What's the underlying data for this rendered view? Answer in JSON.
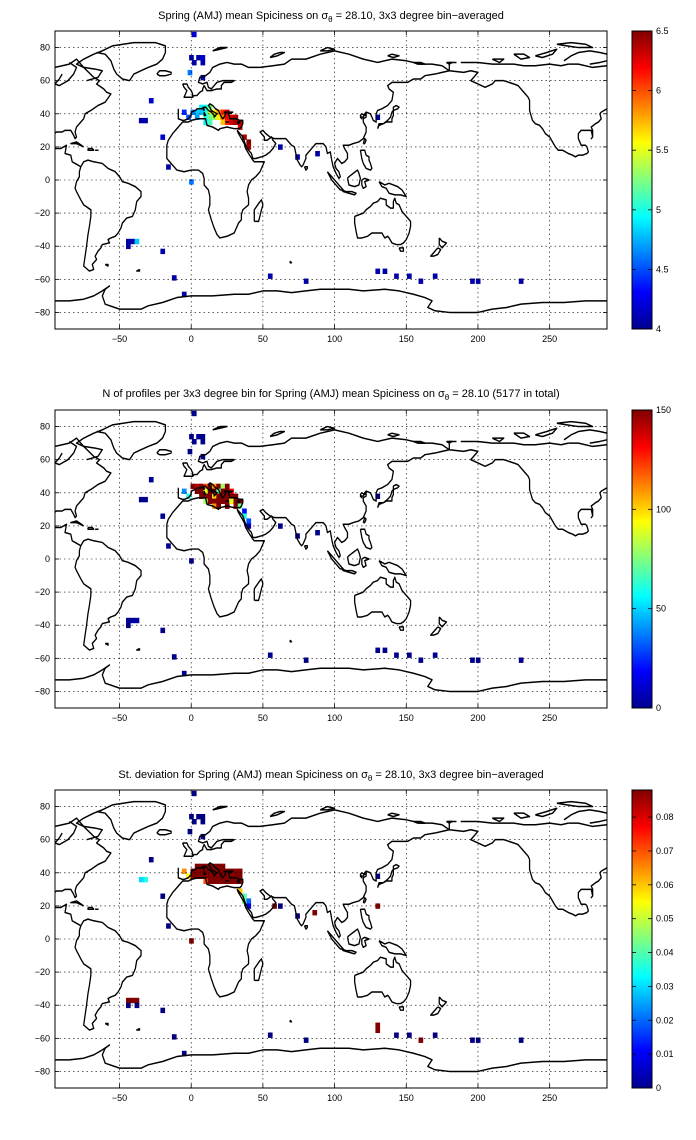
{
  "figure": {
    "colormap": "jet",
    "colors": {
      "ocean": "#ffffff",
      "coastline": "#000000",
      "grid": "#000000",
      "saturated_high": "#800000",
      "low_end": "#00008f"
    }
  },
  "chart_data": [
    {
      "type": "heatmap",
      "title_prefix": "Spring (AMJ) mean Spiciness on σ",
      "title_sub": "θ",
      "title_suffix": " = 28.10, 3x3 degree bin−averaged",
      "xlim": [
        -95,
        290
      ],
      "ylim": [
        -90,
        90
      ],
      "xticks": [
        -50,
        0,
        50,
        100,
        150,
        200,
        250
      ],
      "yticks": [
        -80,
        -60,
        -40,
        -20,
        0,
        20,
        40,
        60,
        80
      ],
      "clim": [
        4,
        6.5
      ],
      "cticks": [
        "4",
        "4.5",
        "5",
        "5.5",
        "6",
        "6.5"
      ],
      "grid": true,
      "colorbar": "right",
      "cells": [
        [
          2,
          88,
          4.2
        ],
        [
          0,
          74,
          4.1
        ],
        [
          5,
          74,
          4.1
        ],
        [
          8,
          74,
          4.2
        ],
        [
          2,
          71,
          4.1
        ],
        [
          8,
          71,
          4.1
        ],
        [
          -1,
          65,
          4.6
        ],
        [
          8,
          62,
          4.1
        ],
        [
          -28,
          48,
          4.2
        ],
        [
          -32,
          36,
          4.1
        ],
        [
          -35,
          36,
          4.1
        ],
        [
          -5,
          41,
          4.4
        ],
        [
          -2,
          38,
          4.5
        ],
        [
          1,
          41,
          4.6
        ],
        [
          4,
          41,
          4.8
        ],
        [
          4,
          38,
          4.7
        ],
        [
          7,
          44,
          4.9
        ],
        [
          10,
          44,
          5.0
        ],
        [
          13,
          44,
          5.2
        ],
        [
          7,
          41,
          4.8
        ],
        [
          10,
          41,
          5.0
        ],
        [
          10,
          38,
          5.0
        ],
        [
          10,
          35,
          4.9
        ],
        [
          13,
          41,
          5.4
        ],
        [
          13,
          38,
          5.2
        ],
        [
          13,
          35,
          5.1
        ],
        [
          16,
          41,
          5.6
        ],
        [
          16,
          38,
          5.3
        ],
        [
          19,
          41,
          5.8
        ],
        [
          19,
          38,
          5.6
        ],
        [
          22,
          41,
          6.1
        ],
        [
          22,
          38,
          5.9
        ],
        [
          22,
          35,
          5.7
        ],
        [
          25,
          41,
          6.3
        ],
        [
          25,
          38,
          6.2
        ],
        [
          25,
          35,
          6.1
        ],
        [
          28,
          38,
          6.3
        ],
        [
          28,
          35,
          6.3
        ],
        [
          31,
          38,
          6.4
        ],
        [
          31,
          35,
          6.4
        ],
        [
          34,
          35,
          6.4
        ],
        [
          34,
          32,
          6.3
        ],
        [
          37,
          26,
          6.4
        ],
        [
          40,
          23,
          6.5
        ],
        [
          40,
          20,
          6.4
        ],
        [
          -20,
          26,
          4.2
        ],
        [
          -16,
          8,
          4.1
        ],
        [
          0,
          -1,
          4.6
        ],
        [
          -44,
          -37,
          4.1
        ],
        [
          -41,
          -37,
          4.1
        ],
        [
          -38,
          -37,
          4.8
        ],
        [
          -44,
          -40,
          4.1
        ],
        [
          -20,
          -43,
          4.1
        ],
        [
          -12,
          -59,
          4.1
        ],
        [
          -5,
          -69,
          4.1
        ],
        [
          55,
          -58,
          4.1
        ],
        [
          80,
          -61,
          4.1
        ],
        [
          62,
          20,
          4.1
        ],
        [
          74,
          14,
          4.1
        ],
        [
          88,
          16,
          4.1
        ],
        [
          130,
          38,
          4.1
        ],
        [
          130,
          -55,
          4.1
        ],
        [
          135,
          -55,
          4.1
        ],
        [
          143,
          -58,
          4.1
        ],
        [
          152,
          -58,
          4.1
        ],
        [
          160,
          -61,
          4.1
        ],
        [
          170,
          -58,
          4.1
        ],
        [
          196,
          -61,
          4.1
        ],
        [
          200,
          -61,
          4.1
        ],
        [
          230,
          -61,
          4.1
        ]
      ]
    },
    {
      "type": "heatmap",
      "title_prefix": "N of profiles per 3x3 degree bin for Spring (AMJ) mean Spiciness on σ",
      "title_sub": "θ",
      "title_suffix": " = 28.10 (5177 in total)",
      "xlim": [
        -95,
        290
      ],
      "ylim": [
        -90,
        90
      ],
      "xticks": [
        -50,
        0,
        50,
        100,
        150,
        200,
        250
      ],
      "yticks": [
        -80,
        -60,
        -40,
        -20,
        0,
        20,
        40,
        60,
        80
      ],
      "clim": [
        0,
        150
      ],
      "cticks": [
        "0",
        "50",
        "100",
        "150"
      ],
      "grid": true,
      "colorbar": "right",
      "cells": [
        [
          2,
          88,
          2
        ],
        [
          0,
          74,
          2
        ],
        [
          5,
          74,
          3
        ],
        [
          8,
          74,
          2
        ],
        [
          2,
          71,
          2
        ],
        [
          8,
          71,
          2
        ],
        [
          -1,
          65,
          2
        ],
        [
          8,
          62,
          2
        ],
        [
          -28,
          48,
          2
        ],
        [
          -32,
          36,
          2
        ],
        [
          -35,
          36,
          2
        ],
        [
          -5,
          41,
          40
        ],
        [
          -2,
          38,
          60
        ],
        [
          1,
          44,
          150
        ],
        [
          4,
          44,
          140
        ],
        [
          7,
          44,
          150
        ],
        [
          10,
          44,
          120
        ],
        [
          13,
          44,
          150
        ],
        [
          16,
          44,
          110
        ],
        [
          19,
          44,
          150
        ],
        [
          22,
          44,
          80
        ],
        [
          25,
          44,
          150
        ],
        [
          4,
          41,
          150
        ],
        [
          7,
          41,
          150
        ],
        [
          10,
          41,
          90
        ],
        [
          13,
          41,
          150
        ],
        [
          16,
          41,
          150
        ],
        [
          19,
          41,
          70
        ],
        [
          22,
          41,
          150
        ],
        [
          25,
          41,
          150
        ],
        [
          28,
          41,
          130
        ],
        [
          7,
          38,
          150
        ],
        [
          10,
          38,
          150
        ],
        [
          13,
          38,
          150
        ],
        [
          16,
          38,
          100
        ],
        [
          19,
          38,
          150
        ],
        [
          22,
          38,
          150
        ],
        [
          25,
          38,
          150
        ],
        [
          28,
          38,
          150
        ],
        [
          31,
          38,
          150
        ],
        [
          10,
          35,
          80
        ],
        [
          13,
          35,
          150
        ],
        [
          16,
          35,
          150
        ],
        [
          19,
          35,
          150
        ],
        [
          22,
          35,
          150
        ],
        [
          25,
          35,
          150
        ],
        [
          28,
          35,
          90
        ],
        [
          31,
          35,
          150
        ],
        [
          34,
          35,
          150
        ],
        [
          16,
          32,
          110
        ],
        [
          19,
          32,
          150
        ],
        [
          25,
          32,
          150
        ],
        [
          31,
          32,
          150
        ],
        [
          34,
          32,
          70
        ],
        [
          37,
          29,
          20
        ],
        [
          37,
          26,
          60
        ],
        [
          40,
          23,
          30
        ],
        [
          40,
          20,
          10
        ],
        [
          -20,
          26,
          2
        ],
        [
          -16,
          8,
          2
        ],
        [
          0,
          -1,
          2
        ],
        [
          -44,
          -37,
          3
        ],
        [
          -41,
          -37,
          3
        ],
        [
          -38,
          -37,
          6
        ],
        [
          -44,
          -40,
          2
        ],
        [
          -20,
          -43,
          2
        ],
        [
          -12,
          -59,
          2
        ],
        [
          -5,
          -69,
          2
        ],
        [
          55,
          -58,
          2
        ],
        [
          80,
          -61,
          2
        ],
        [
          62,
          20,
          2
        ],
        [
          74,
          14,
          2
        ],
        [
          88,
          16,
          2
        ],
        [
          130,
          38,
          2
        ],
        [
          130,
          -55,
          2
        ],
        [
          135,
          -55,
          2
        ],
        [
          143,
          -58,
          2
        ],
        [
          152,
          -58,
          2
        ],
        [
          160,
          -61,
          2
        ],
        [
          170,
          -58,
          2
        ],
        [
          196,
          -61,
          2
        ],
        [
          200,
          -61,
          2
        ],
        [
          230,
          -61,
          2
        ]
      ]
    },
    {
      "type": "heatmap",
      "title_prefix": "St. deviation for Spring (AMJ) mean Spiciness on σ",
      "title_sub": "θ",
      "title_suffix": " = 28.10, 3x3 degree bin−averaged",
      "xlim": [
        -95,
        290
      ],
      "ylim": [
        -90,
        90
      ],
      "xticks": [
        -50,
        0,
        50,
        100,
        150,
        200,
        250
      ],
      "yticks": [
        -80,
        -60,
        -40,
        -20,
        0,
        20,
        40,
        60,
        80
      ],
      "clim": [
        0,
        0.088
      ],
      "cticks": [
        "0",
        "0.01",
        "0.02",
        "0.03",
        "0.04",
        "0.05",
        "0.06",
        "0.07",
        "0.08"
      ],
      "grid": true,
      "colorbar": "right",
      "cells": [
        [
          2,
          88,
          0
        ],
        [
          0,
          74,
          0
        ],
        [
          5,
          74,
          0
        ],
        [
          8,
          74,
          0
        ],
        [
          2,
          71,
          0
        ],
        [
          8,
          71,
          0
        ],
        [
          -1,
          65,
          0
        ],
        [
          8,
          62,
          0
        ],
        [
          -28,
          48,
          0
        ],
        [
          -32,
          36,
          0.035
        ],
        [
          -35,
          36,
          0.03
        ],
        [
          -5,
          41,
          0.065
        ],
        [
          -2,
          38,
          0.055
        ],
        [
          1,
          41,
          0.088
        ],
        [
          4,
          44,
          0.088
        ],
        [
          7,
          44,
          0.088
        ],
        [
          10,
          44,
          0.088
        ],
        [
          13,
          44,
          0.088
        ],
        [
          16,
          44,
          0.088
        ],
        [
          19,
          44,
          0.088
        ],
        [
          22,
          44,
          0.088
        ],
        [
          4,
          41,
          0.088
        ],
        [
          7,
          41,
          0.088
        ],
        [
          10,
          41,
          0.088
        ],
        [
          13,
          41,
          0.088
        ],
        [
          16,
          41,
          0.088
        ],
        [
          19,
          41,
          0.088
        ],
        [
          22,
          41,
          0.088
        ],
        [
          25,
          41,
          0.088
        ],
        [
          28,
          41,
          0.088
        ],
        [
          31,
          41,
          0.088
        ],
        [
          34,
          41,
          0.088
        ],
        [
          1,
          38,
          0.088
        ],
        [
          4,
          38,
          0.088
        ],
        [
          7,
          38,
          0.088
        ],
        [
          10,
          38,
          0.088
        ],
        [
          13,
          38,
          0.088
        ],
        [
          16,
          38,
          0.088
        ],
        [
          19,
          38,
          0.088
        ],
        [
          22,
          38,
          0.088
        ],
        [
          25,
          38,
          0.088
        ],
        [
          28,
          38,
          0.088
        ],
        [
          31,
          38,
          0.088
        ],
        [
          34,
          38,
          0.088
        ],
        [
          22,
          35,
          0.088
        ],
        [
          25,
          35,
          0.088
        ],
        [
          28,
          35,
          0.088
        ],
        [
          31,
          35,
          0.088
        ],
        [
          34,
          35,
          0.088
        ],
        [
          10,
          35,
          0.07
        ],
        [
          13,
          35,
          0.088
        ],
        [
          16,
          35,
          0.088
        ],
        [
          19,
          35,
          0.088
        ],
        [
          34,
          29,
          0.06
        ],
        [
          37,
          26,
          0.04
        ],
        [
          37,
          23,
          0.045
        ],
        [
          40,
          23,
          0.02
        ],
        [
          40,
          20,
          0.01
        ],
        [
          -20,
          26,
          0
        ],
        [
          -16,
          8,
          0
        ],
        [
          0,
          -1,
          0.088
        ],
        [
          -44,
          -37,
          0.088
        ],
        [
          -41,
          -37,
          0.088
        ],
        [
          -38,
          -37,
          0.088
        ],
        [
          -44,
          -40,
          0
        ],
        [
          -38,
          -40,
          0
        ],
        [
          -20,
          -43,
          0
        ],
        [
          -12,
          -59,
          0
        ],
        [
          -5,
          -69,
          0
        ],
        [
          55,
          -58,
          0
        ],
        [
          80,
          -61,
          0
        ],
        [
          58,
          20,
          0.088
        ],
        [
          62,
          20,
          0
        ],
        [
          74,
          14,
          0
        ],
        [
          86,
          16,
          0.088
        ],
        [
          130,
          38,
          0
        ],
        [
          130,
          20,
          0.088
        ],
        [
          130,
          -55,
          0.088
        ],
        [
          130,
          -52,
          0.088
        ],
        [
          143,
          -58,
          0
        ],
        [
          152,
          -58,
          0
        ],
        [
          160,
          -61,
          0.088
        ],
        [
          170,
          -58,
          0
        ],
        [
          196,
          -61,
          0
        ],
        [
          200,
          -61,
          0
        ],
        [
          230,
          -61,
          0
        ]
      ]
    }
  ]
}
